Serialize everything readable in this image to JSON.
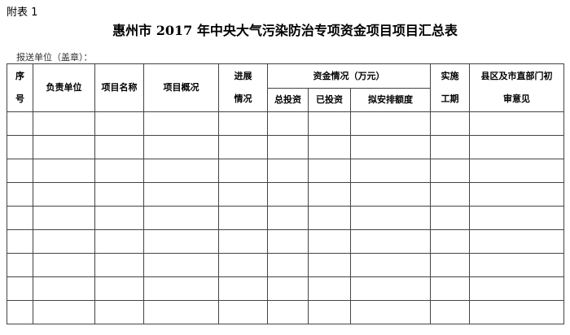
{
  "annex": "附表 1",
  "title": "惠州市 2017 年中央大气污染防治专项资金项目项目汇总表",
  "unit_label": "报送单位（盖章）：",
  "headers": {
    "seq": "序",
    "seq2": "号",
    "unit": "负责单位",
    "name": "项目名称",
    "overview": "项目概况",
    "progress": "进展",
    "progress2": "情况",
    "funds": "资金情况（万元）",
    "total": "总投资",
    "invested": "已投资",
    "planned": "拟安排额度",
    "period": "实施",
    "period2": "工期",
    "opinion": "县区及市直部门初",
    "opinion2": "审意见"
  },
  "rows": 9
}
